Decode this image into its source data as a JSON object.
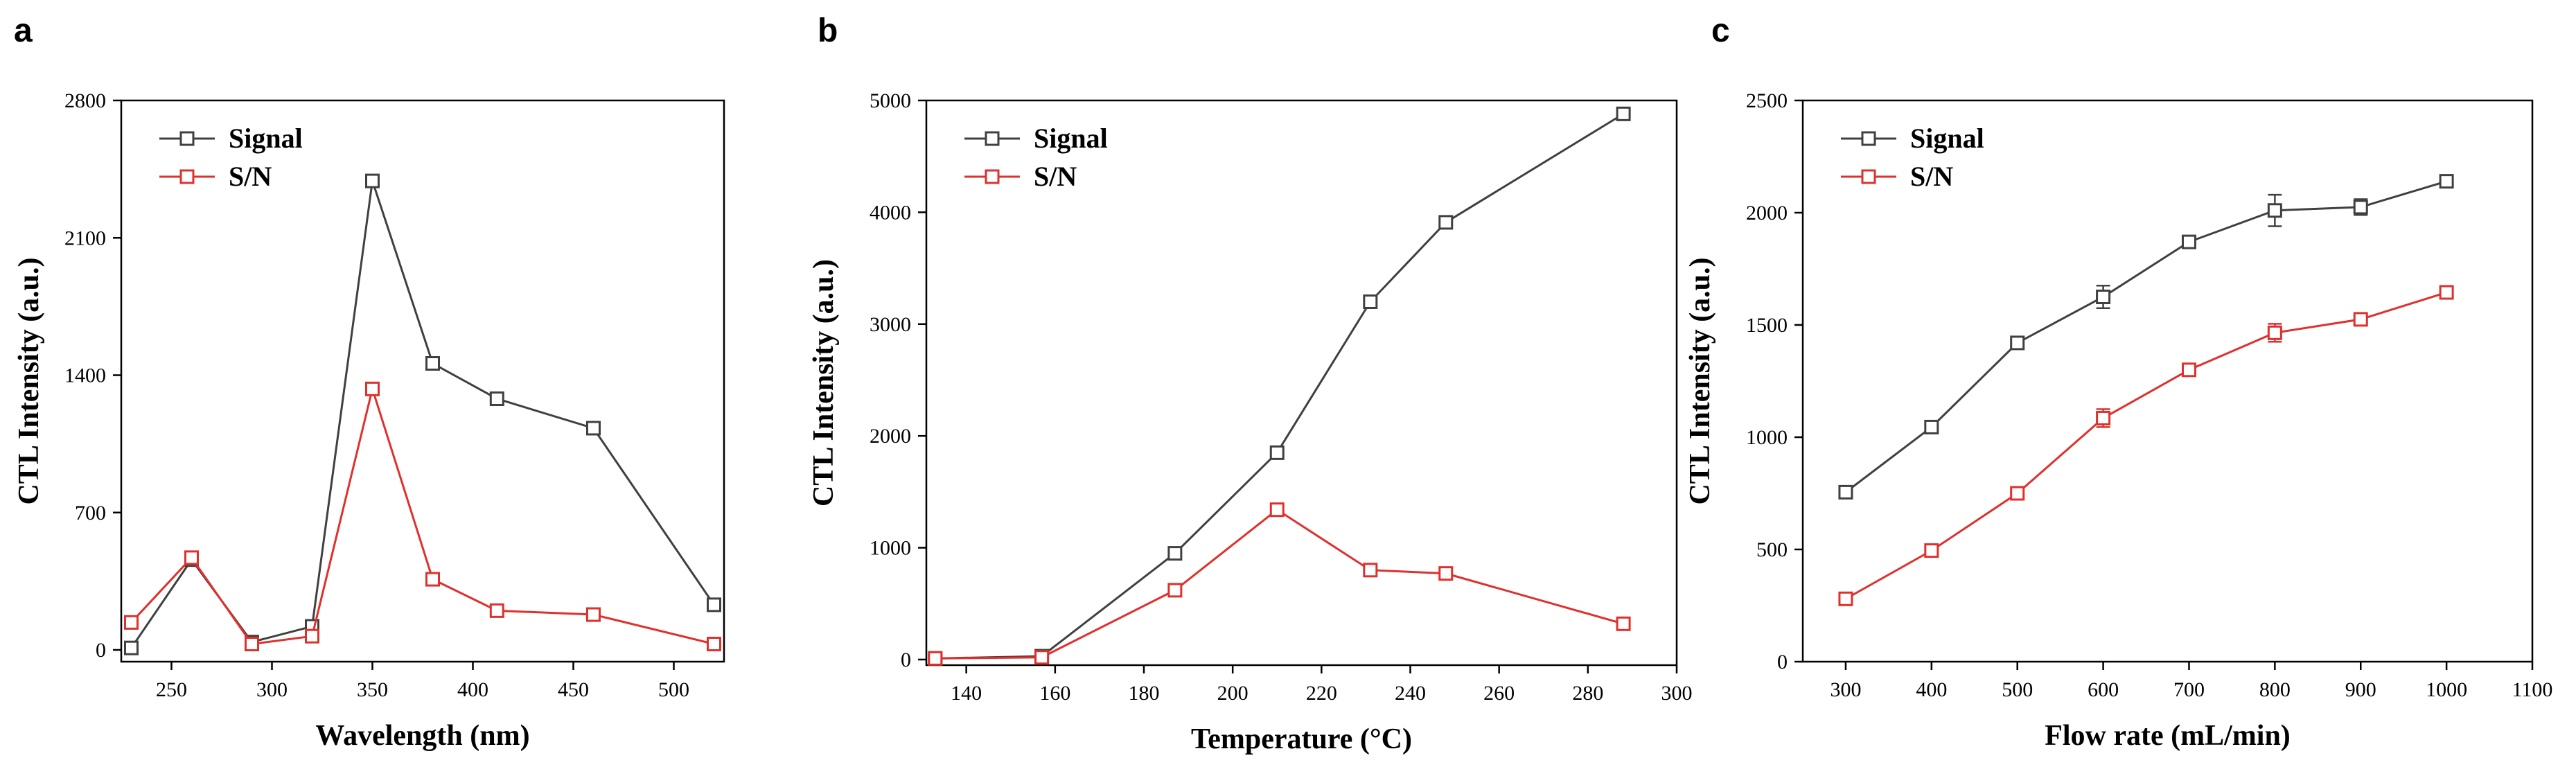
{
  "chart_data": [
    {
      "panel_label": "a",
      "type": "line",
      "title": "",
      "xlabel": "Wavelength (nm)",
      "ylabel": "CTL Intensity (a.u.)",
      "xlim": [
        225,
        525
      ],
      "ylim": [
        -60,
        2800
      ],
      "xticks": [
        250,
        300,
        350,
        400,
        450,
        500
      ],
      "yticks": [
        0,
        700,
        1400,
        2100,
        2800
      ],
      "grid": false,
      "legend_position": "top-left",
      "series": [
        {
          "name": "Signal",
          "color": "#404040",
          "marker": "square",
          "x": [
            230,
            260,
            290,
            320,
            350,
            380,
            412,
            460,
            520
          ],
          "y": [
            10,
            460,
            40,
            120,
            2390,
            1460,
            1280,
            1130,
            230
          ]
        },
        {
          "name": "S/N",
          "color": "#e0302c",
          "marker": "square",
          "x": [
            230,
            260,
            290,
            320,
            350,
            380,
            412,
            460,
            520
          ],
          "y": [
            140,
            470,
            30,
            70,
            1330,
            360,
            200,
            180,
            30
          ]
        }
      ]
    },
    {
      "panel_label": "b",
      "type": "line",
      "title": "",
      "xlabel": "Temperature  (°C)",
      "ylabel": "CTL Intensity (a.u.)",
      "xlim": [
        131,
        300
      ],
      "ylim": [
        -50,
        5000
      ],
      "xticks": [
        140,
        160,
        180,
        200,
        220,
        240,
        260,
        280,
        300
      ],
      "yticks": [
        0,
        1000,
        2000,
        3000,
        4000,
        5000
      ],
      "grid": false,
      "legend_position": "top-left",
      "series": [
        {
          "name": "Signal",
          "color": "#404040",
          "marker": "square",
          "x": [
            133,
            157,
            187,
            210,
            231,
            248,
            288
          ],
          "y": [
            10,
            30,
            950,
            1850,
            3200,
            3910,
            4880
          ]
        },
        {
          "name": "S/N",
          "color": "#e0302c",
          "marker": "square",
          "x": [
            133,
            157,
            187,
            210,
            231,
            248,
            288
          ],
          "y": [
            10,
            20,
            620,
            1340,
            800,
            770,
            320
          ]
        }
      ]
    },
    {
      "panel_label": "c",
      "type": "line",
      "title": "",
      "xlabel": "Flow rate (mL/min)",
      "ylabel": "CTL Intensity (a.u.)",
      "xlim": [
        250,
        1100
      ],
      "ylim": [
        0,
        2500
      ],
      "xticks": [
        300,
        400,
        500,
        600,
        700,
        800,
        900,
        1000,
        1100
      ],
      "yticks": [
        0,
        500,
        1000,
        1500,
        2000,
        2500
      ],
      "grid": false,
      "legend_position": "top-left",
      "series": [
        {
          "name": "Signal",
          "color": "#404040",
          "marker": "square",
          "x": [
            300,
            400,
            500,
            600,
            700,
            800,
            900,
            1000
          ],
          "y": [
            755,
            1045,
            1420,
            1625,
            1870,
            2010,
            2025,
            2140
          ],
          "err": [
            10,
            20,
            15,
            50,
            15,
            70,
            35,
            15
          ]
        },
        {
          "name": "S/N",
          "color": "#e0302c",
          "marker": "square",
          "x": [
            300,
            400,
            500,
            600,
            700,
            800,
            900,
            1000
          ],
          "y": [
            280,
            495,
            750,
            1085,
            1300,
            1465,
            1525,
            1645
          ],
          "err": [
            15,
            15,
            15,
            40,
            20,
            40,
            20,
            15
          ]
        }
      ]
    }
  ]
}
